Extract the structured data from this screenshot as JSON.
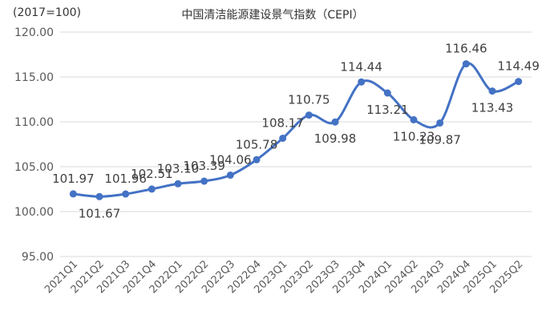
{
  "chart_data": {
    "type": "line",
    "title": "中国清洁能源建设景气指数（CEPI）",
    "unit_note": "(2017=100)",
    "xlabel": "",
    "ylabel": "",
    "ylim": [
      95,
      120
    ],
    "yticks": [
      "95.00",
      "100.00",
      "105.00",
      "110.00",
      "115.00",
      "120.00"
    ],
    "grid": "horizontal",
    "legend": "none",
    "smooth": true,
    "line_color": "#4472C4",
    "categories": [
      "2021Q1",
      "2021Q2",
      "2021Q3",
      "2021Q4",
      "2022Q1",
      "2022Q2",
      "2022Q3",
      "2022Q4",
      "2023Q1",
      "2023Q2",
      "2023Q3",
      "2023Q4",
      "2024Q1",
      "2024Q2",
      "2024Q3",
      "2024Q4",
      "2025Q1",
      "2025Q2"
    ],
    "values": [
      101.97,
      101.67,
      101.96,
      102.51,
      103.1,
      103.39,
      104.06,
      105.78,
      108.17,
      110.75,
      109.98,
      114.44,
      113.21,
      110.23,
      109.87,
      116.46,
      113.43,
      114.49
    ],
    "data_labels": [
      "101.97",
      "101.67",
      "101.96",
      "102.51",
      "103.10",
      "103.39",
      "104.06",
      "105.78",
      "108.17",
      "110.75",
      "109.98",
      "114.44",
      "113.21",
      "110.23",
      "109.87",
      "116.46",
      "113.43",
      "114.49"
    ]
  }
}
